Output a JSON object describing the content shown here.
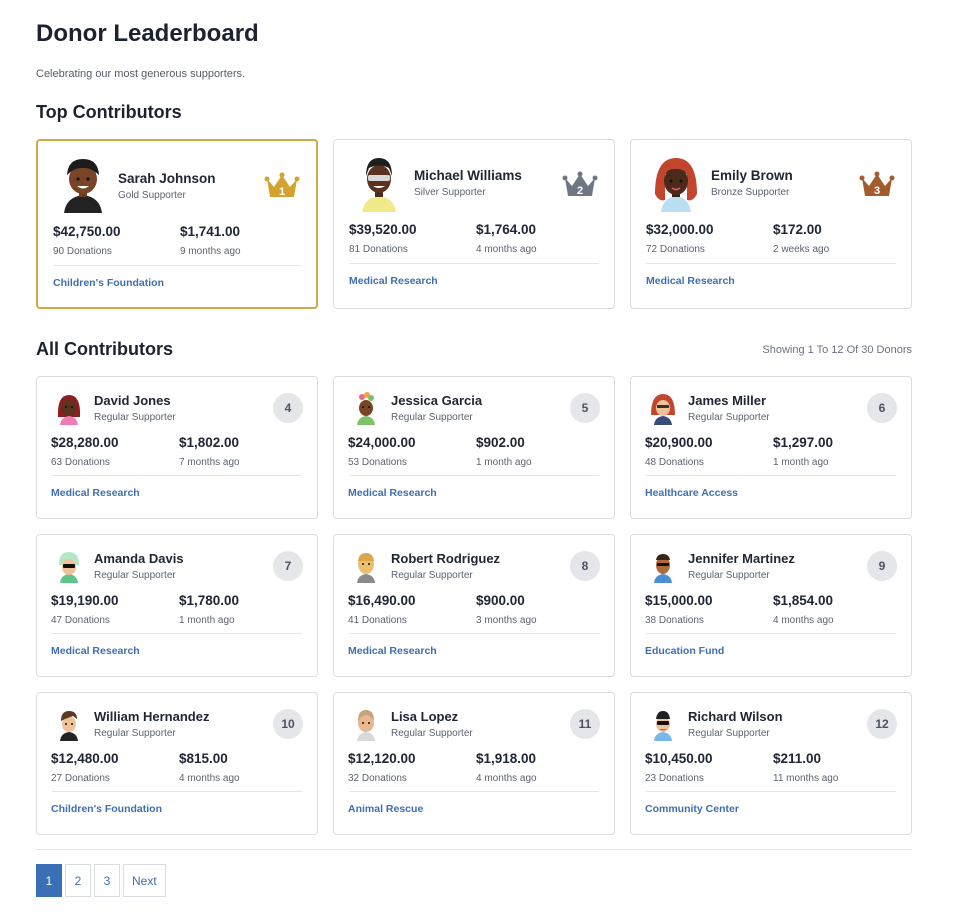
{
  "header": {
    "title": "Donor Leaderboard",
    "subtitle": "Celebrating our most generous supporters."
  },
  "sections": {
    "top": "Top Contributors",
    "all": "All Contributors",
    "showing": "Showing 1 To 12 Of 30 Donors"
  },
  "colors": {
    "gold": "#d4a32f",
    "silver": "#6f7683",
    "bronze": "#a45c2c",
    "link": "#3f6fb0",
    "accent": "#3b6fb5"
  },
  "top": [
    {
      "name": "Sarah Johnson",
      "tier": "Gold Supporter",
      "rank": "1",
      "total": "$42,750.00",
      "count": "90 Donations",
      "largest": "$1,741.00",
      "last": "9 months ago",
      "cause": "Children's Foundation",
      "crown_icon": "gold-crown-icon"
    },
    {
      "name": "Michael Williams",
      "tier": "Silver Supporter",
      "rank": "2",
      "total": "$39,520.00",
      "count": "81 Donations",
      "largest": "$1,764.00",
      "last": "4 months ago",
      "cause": "Medical Research",
      "crown_icon": "silver-crown-icon"
    },
    {
      "name": "Emily Brown",
      "tier": "Bronze Supporter",
      "rank": "3",
      "total": "$32,000.00",
      "count": "72 Donations",
      "largest": "$172.00",
      "last": "2 weeks ago",
      "cause": "Medical Research",
      "crown_icon": "bronze-crown-icon"
    }
  ],
  "donors": [
    {
      "name": "David Jones",
      "tier": "Regular Supporter",
      "rank": "4",
      "total": "$28,280.00",
      "count": "63 Donations",
      "largest": "$1,802.00",
      "last": "7 months ago",
      "cause": "Medical Research"
    },
    {
      "name": "Jessica Garcia",
      "tier": "Regular Supporter",
      "rank": "5",
      "total": "$24,000.00",
      "count": "53 Donations",
      "largest": "$902.00",
      "last": "1 month ago",
      "cause": "Medical Research"
    },
    {
      "name": "James Miller",
      "tier": "Regular Supporter",
      "rank": "6",
      "total": "$20,900.00",
      "count": "48 Donations",
      "largest": "$1,297.00",
      "last": "1 month ago",
      "cause": "Healthcare Access"
    },
    {
      "name": "Amanda Davis",
      "tier": "Regular Supporter",
      "rank": "7",
      "total": "$19,190.00",
      "count": "47 Donations",
      "largest": "$1,780.00",
      "last": "1 month ago",
      "cause": "Medical Research"
    },
    {
      "name": "Robert Rodriguez",
      "tier": "Regular Supporter",
      "rank": "8",
      "total": "$16,490.00",
      "count": "41 Donations",
      "largest": "$900.00",
      "last": "3 months ago",
      "cause": "Medical Research"
    },
    {
      "name": "Jennifer Martinez",
      "tier": "Regular Supporter",
      "rank": "9",
      "total": "$15,000.00",
      "count": "38 Donations",
      "largest": "$1,854.00",
      "last": "4 months ago",
      "cause": "Education Fund"
    },
    {
      "name": "William Hernandez",
      "tier": "Regular Supporter",
      "rank": "10",
      "total": "$12,480.00",
      "count": "27 Donations",
      "largest": "$815.00",
      "last": "4 months ago",
      "cause": "Children's Foundation"
    },
    {
      "name": "Lisa Lopez",
      "tier": "Regular Supporter",
      "rank": "11",
      "total": "$12,120.00",
      "count": "32 Donations",
      "largest": "$1,918.00",
      "last": "4 months ago",
      "cause": "Animal Rescue"
    },
    {
      "name": "Richard Wilson",
      "tier": "Regular Supporter",
      "rank": "12",
      "total": "$10,450.00",
      "count": "23 Donations",
      "largest": "$211.00",
      "last": "11 months ago",
      "cause": "Community Center"
    }
  ],
  "pagination": {
    "pages": [
      "1",
      "2",
      "3"
    ],
    "active": "1",
    "next": "Next"
  }
}
